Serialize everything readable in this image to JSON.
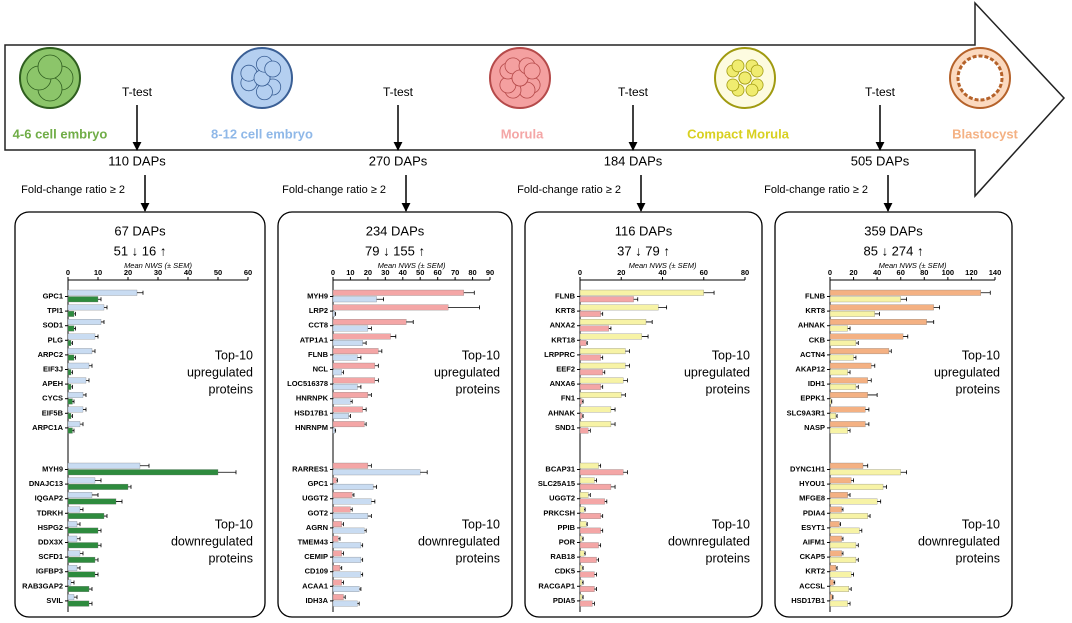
{
  "stages": [
    {
      "label": "4-6 cell embryo",
      "color": "#70ad47",
      "fill": "#8cc56a",
      "stroke": "#2f5e1f"
    },
    {
      "label": "8-12 cell embryo",
      "color": "#8fb8e8",
      "fill": "#b4cff0",
      "stroke": "#3a5f95"
    },
    {
      "label": "Morula",
      "color": "#f4a6a6",
      "fill": "#f4a0a0",
      "stroke": "#b54a4a"
    },
    {
      "label": "Compact Morula",
      "color": "#d8d020",
      "fill": "#f0ec70",
      "stroke": "#a09a10"
    },
    {
      "label": "Blastocyst",
      "color": "#f4b183",
      "fill": "#f4b183",
      "stroke": "#b5622a"
    }
  ],
  "comparisons": [
    {
      "test": "T-test",
      "daps": "110 DAPs",
      "filter": "Fold-change ratio ≥ 2"
    },
    {
      "test": "T-test",
      "daps": "270 DAPs",
      "filter": "Fold-change ratio ≥ 2"
    },
    {
      "test": "T-test",
      "daps": "184 DAPs",
      "filter": "Fold-change ratio ≥ 2"
    },
    {
      "test": "T-test",
      "daps": "505 DAPs",
      "filter": "Fold-change ratio ≥ 2"
    }
  ],
  "chart_data": [
    {
      "type": "hbar",
      "title": "67 DAPs",
      "subtitle": "51 ↓ 16 ↑",
      "x_label": "Mean NWS (± SEM)",
      "annotations": [
        [
          "Top-10",
          "upregulated",
          "proteins"
        ],
        [
          "Top-10",
          "downregulated",
          "proteins"
        ]
      ],
      "categories": [
        "GPC1",
        "TPI1",
        "SOD1",
        "PLG",
        "ARPC2",
        "EIF3J",
        "APEH",
        "CYCS",
        "EIF5B",
        "ARPC1A",
        "MYH9",
        "DNAJC13",
        "IQGAP2",
        "TDRKH",
        "HSPG2",
        "DDX3X",
        "SCFD1",
        "IGFBP3",
        "RAB3GAP2",
        "SVIL"
      ],
      "xlim": [
        0,
        60
      ],
      "xticks": [
        0,
        10,
        20,
        30,
        40,
        50,
        60
      ],
      "series": [
        {
          "color": "#c9dcf2",
          "values": [
            23,
            12,
            11,
            9,
            8,
            7,
            6,
            5,
            5,
            4,
            24,
            9,
            8,
            4,
            3,
            3,
            4,
            3,
            1,
            2
          ],
          "errors": [
            2,
            1,
            1,
            1,
            1,
            1,
            1,
            1,
            1,
            1,
            3,
            2,
            2,
            1,
            1,
            1,
            1,
            1,
            1,
            1
          ]
        },
        {
          "color": "#2e8b3e",
          "values": [
            10,
            2,
            2,
            1,
            2,
            1,
            1,
            1.5,
            1,
            1.5,
            50,
            20,
            16,
            12,
            10,
            10,
            9,
            9,
            7,
            7
          ],
          "errors": [
            1,
            0.5,
            0.5,
            0.5,
            0.5,
            0.5,
            0.5,
            0.5,
            0.5,
            0.5,
            6,
            1,
            2,
            1,
            1,
            1,
            1,
            1,
            1,
            1
          ]
        }
      ]
    },
    {
      "type": "hbar",
      "title": "234 DAPs",
      "subtitle": "79 ↓ 155 ↑",
      "x_label": "Mean NWS (± SEM)",
      "annotations": [
        [
          "Top-10",
          "upregulated",
          "proteins"
        ],
        [
          "Top-10",
          "downregulated",
          "proteins"
        ]
      ],
      "categories": [
        "MYH9",
        "LRP2",
        "CCT8",
        "ATP1A1",
        "FLNB",
        "NCL",
        "LOC516378",
        "HNRNPK",
        "HSD17B1",
        "HNRNPM",
        "RARRES1",
        "GPC1",
        "UGGT2",
        "GOT2",
        "AGRN",
        "TMEM43",
        "CEMIP",
        "CD109",
        "ACAA1",
        "IDH3A"
      ],
      "xlim": [
        0,
        90
      ],
      "xticks": [
        0,
        10,
        20,
        30,
        40,
        50,
        60,
        70,
        80,
        90
      ],
      "series": [
        {
          "color": "#f4a6a6",
          "values": [
            75,
            66,
            42,
            33,
            26,
            24,
            24,
            20,
            17,
            18,
            20,
            2,
            11,
            10,
            5,
            3,
            5,
            4,
            5,
            6
          ],
          "errors": [
            6,
            18,
            4,
            3,
            2,
            2,
            2,
            2,
            2,
            1,
            2,
            0.5,
            1,
            1,
            1,
            1,
            1,
            1,
            1,
            1
          ]
        },
        {
          "color": "#c9dcf2",
          "values": [
            25,
            1,
            20,
            17,
            14,
            5,
            14,
            10,
            9,
            1,
            50,
            23,
            22,
            20,
            18,
            16,
            16,
            16,
            15,
            14
          ],
          "errors": [
            4,
            0.5,
            2,
            2,
            2,
            1,
            2,
            1,
            1,
            0.5,
            4,
            2,
            2,
            2,
            1,
            1,
            1,
            1,
            1,
            1
          ]
        }
      ]
    },
    {
      "type": "hbar",
      "title": "116 DAPs",
      "subtitle": "37 ↓ 79 ↑",
      "x_label": "Mean NWS (± SEM)",
      "annotations": [
        [
          "Top-10",
          "upregulated",
          "proteins"
        ],
        [
          "Top-10",
          "downregulated",
          "proteins"
        ]
      ],
      "categories": [
        "FLNB",
        "KRT8",
        "ANXA2",
        "KRT18",
        "LRPPRC",
        "EEF2",
        "ANXA6",
        "FN1",
        "AHNAK",
        "SND1",
        "BCAP31",
        "SLC25A15",
        "UGGT2",
        "PRKCSH",
        "PPIB",
        "POR",
        "RAB18",
        "CDK5",
        "RACGAP1",
        "PDIA5"
      ],
      "xlim": [
        0,
        80
      ],
      "xticks": [
        0,
        20,
        40,
        60,
        80
      ],
      "series": [
        {
          "color": "#f7f3a6",
          "values": [
            60,
            38,
            32,
            30,
            22,
            22,
            21,
            20,
            15,
            15,
            9,
            7,
            4,
            2,
            3,
            1,
            2,
            1,
            1,
            1
          ],
          "errors": [
            5,
            4,
            3,
            3,
            2,
            2,
            2,
            2,
            2,
            2,
            1,
            1,
            1,
            0.5,
            0.5,
            0.5,
            0.5,
            0.5,
            0.5,
            0.5
          ]
        },
        {
          "color": "#f4a6a6",
          "values": [
            26,
            10,
            14,
            3,
            10,
            11,
            10,
            1,
            1,
            4,
            21,
            15,
            12,
            10,
            10,
            9,
            8,
            7,
            7,
            6
          ],
          "errors": [
            2,
            1,
            1,
            0.5,
            1,
            1,
            1,
            0.5,
            0.5,
            1,
            2,
            2,
            1,
            1,
            1,
            1,
            1,
            1,
            1,
            1
          ]
        }
      ]
    },
    {
      "type": "hbar",
      "title": "359 DAPs",
      "subtitle": "85 ↓ 274 ↑",
      "x_label": "Mean NWS (± SEM)",
      "annotations": [
        [
          "Top-10",
          "upregulated",
          "proteins"
        ],
        [
          "Top-10",
          "downregulated",
          "proteins"
        ]
      ],
      "categories": [
        "FLNB",
        "KRT8",
        "AHNAK",
        "CKB",
        "ACTN4",
        "AKAP12",
        "IDH1",
        "EPPK1",
        "SLC9A3R1",
        "NASP",
        "DYNC1H1",
        "HYOU1",
        "MFGE8",
        "PDIA4",
        "ESYT1",
        "AIFM1",
        "CKAP5",
        "KRT2",
        "ACCSL",
        "HSD17B1"
      ],
      "xlim": [
        0,
        140
      ],
      "xticks": [
        0,
        20,
        40,
        60,
        80,
        100,
        120,
        140
      ],
      "series": [
        {
          "color": "#f4b183",
          "values": [
            128,
            88,
            82,
            62,
            50,
            35,
            32,
            32,
            30,
            30,
            28,
            18,
            15,
            10,
            8,
            10,
            10,
            5,
            3,
            2
          ],
          "errors": [
            8,
            5,
            6,
            4,
            2,
            3,
            3,
            8,
            3,
            3,
            4,
            2,
            2,
            1,
            1,
            1,
            1,
            1,
            1,
            0.5
          ]
        },
        {
          "color": "#f7f3a6",
          "values": [
            60,
            38,
            15,
            22,
            20,
            15,
            22,
            1,
            5,
            15,
            60,
            45,
            40,
            32,
            25,
            22,
            22,
            18,
            16,
            15
          ],
          "errors": [
            5,
            4,
            2,
            2,
            2,
            2,
            2,
            0.5,
            1,
            2,
            5,
            3,
            3,
            2,
            2,
            2,
            2,
            2,
            2,
            2
          ]
        }
      ]
    }
  ]
}
